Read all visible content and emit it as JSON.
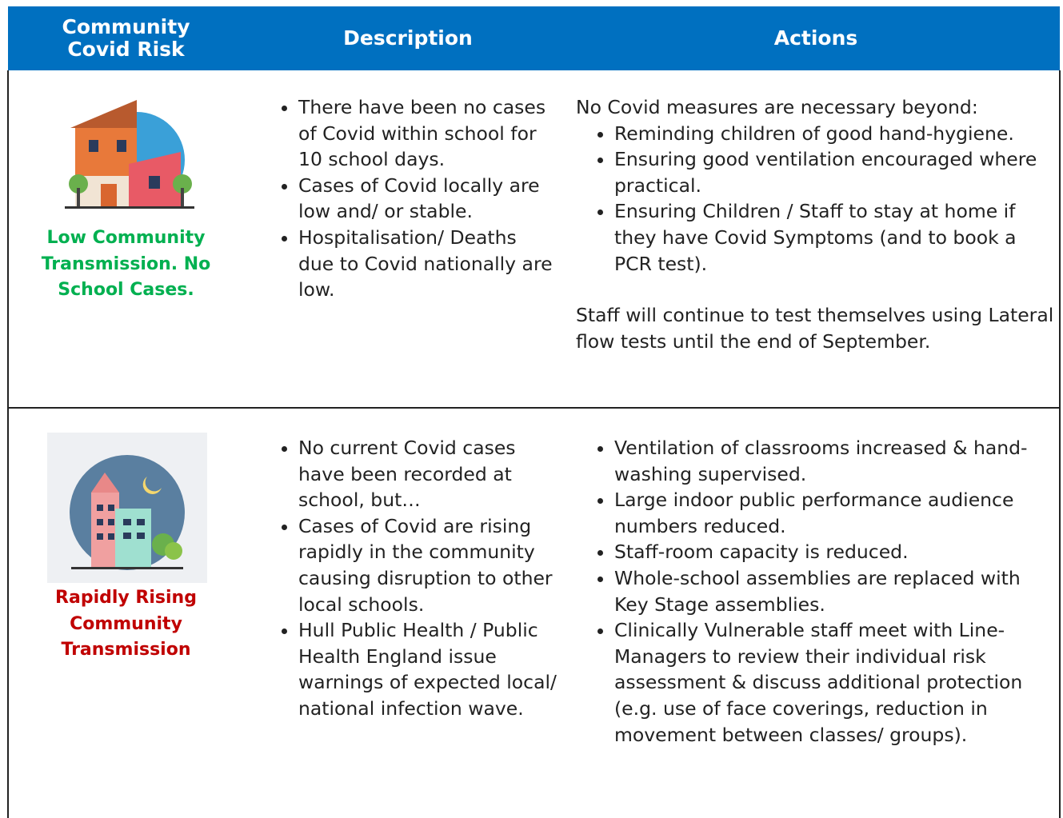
{
  "table": {
    "header": [
      "Community Covid Risk",
      "Description",
      "Actions"
    ],
    "rows": [
      {
        "risk": "Low Community Transmission. No School Cases.",
        "description": [
          "There have been no cases of Covid within school for 10 school days.",
          "Cases of Covid locally are low and/ or stable.",
          "Hospitalisation/ Deaths due to Covid nationally are low."
        ],
        "actions_intro": "No Covid measures are necessary beyond:",
        "actions": [
          "Reminding children of good hand-hygiene.",
          "Ensuring good ventilation encouraged where practical.",
          "Ensuring Children / Staff to stay at home if they have Covid Symptoms (and to book a PCR test)."
        ],
        "actions_note": "Staff will continue to test themselves using Lateral flow tests until the end of September."
      },
      {
        "risk": "Rapidly Rising Community Transmission",
        "description": [
          "No current Covid cases have been recorded at school, but…",
          "Cases of Covid are rising rapidly in the community causing disruption to other local schools.",
          "Hull Public Health / Public Health England issue warnings of expected local/ national infection wave."
        ],
        "actions": [
          "Ventilation of classrooms increased & hand-washing supervised.",
          "Large indoor public performance audience numbers reduced.",
          "Staff-room capacity is reduced.",
          "Whole-school assemblies are replaced with Key Stage assemblies.",
          "Clinically Vulnerable staff meet with Line-Managers to review their individual risk assessment & discuss additional protection (e.g. use of face coverings, reduction in movement between classes/ groups)."
        ]
      }
    ]
  }
}
